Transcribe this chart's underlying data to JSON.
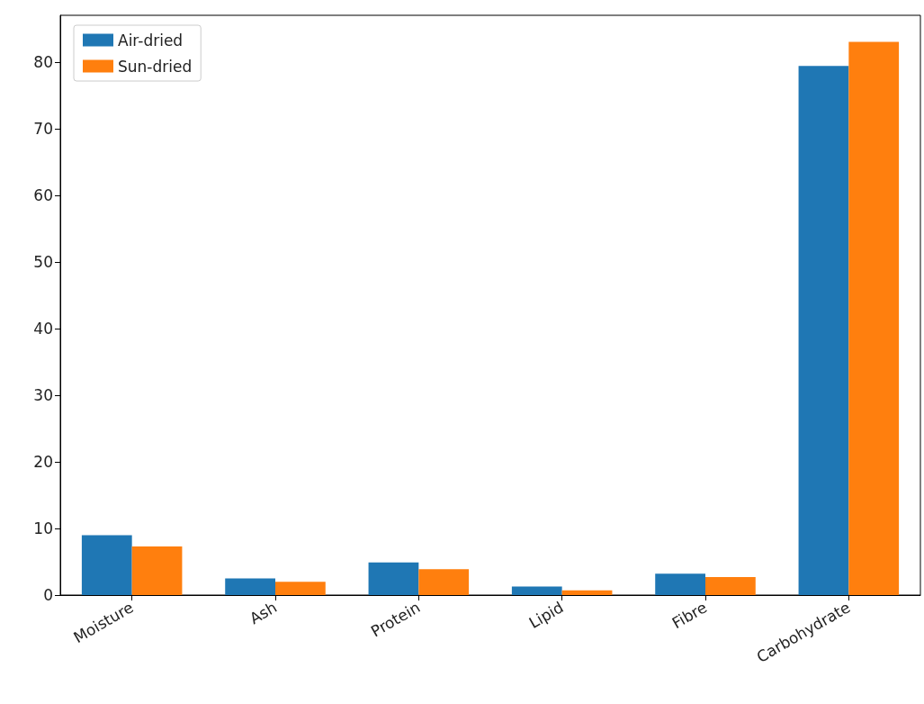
{
  "chart_data": {
    "type": "bar",
    "categories": [
      "Moisture",
      "Ash",
      "Protein",
      "Lipid",
      "Fibre",
      "Carbohydrate"
    ],
    "series": [
      {
        "name": "Air-dried",
        "color": "#1f77b4",
        "values": [
          9.0,
          2.5,
          4.9,
          1.3,
          3.2,
          79.4
        ]
      },
      {
        "name": "Sun-dried",
        "color": "#ff7f0e",
        "values": [
          7.3,
          2.0,
          3.9,
          0.7,
          2.7,
          83.0
        ]
      }
    ],
    "ylim": [
      0,
      87
    ],
    "yticks": [
      0,
      10,
      20,
      30,
      40,
      50,
      60,
      70,
      80
    ],
    "grid": false,
    "legend": "top left"
  }
}
